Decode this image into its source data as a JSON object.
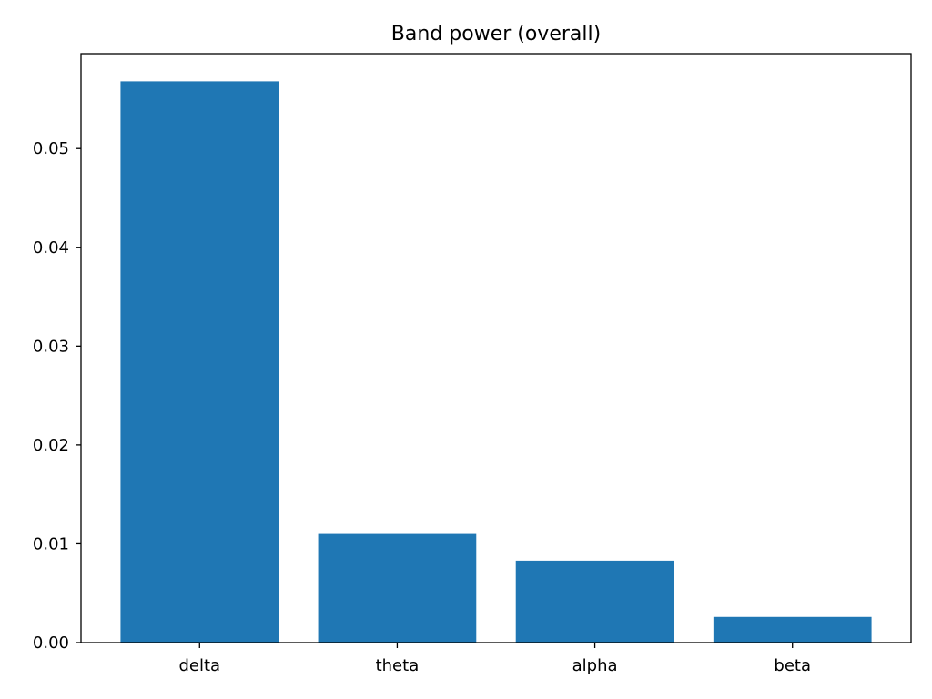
{
  "chart_data": {
    "type": "bar",
    "title": "Band power (overall)",
    "xlabel": "",
    "ylabel": "",
    "categories": [
      "delta",
      "theta",
      "alpha",
      "beta"
    ],
    "values": [
      0.0568,
      0.011,
      0.0083,
      0.0026
    ],
    "ylim": [
      0,
      0.0596
    ],
    "yticks": [
      0.0,
      0.01,
      0.02,
      0.03,
      0.04,
      0.05
    ],
    "ytick_labels": [
      "0.00",
      "0.01",
      "0.02",
      "0.03",
      "0.04",
      "0.05"
    ],
    "bar_color": "#1f77b4",
    "grid": false,
    "legend": "none"
  }
}
